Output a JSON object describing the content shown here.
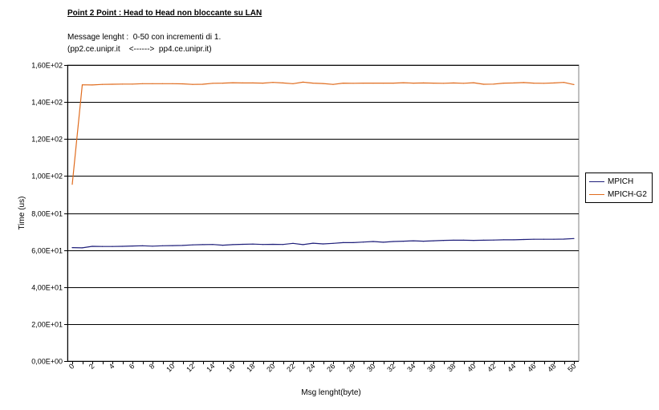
{
  "header": {
    "title": "Point 2 Point  :  Head to Head non bloccante su LAN",
    "subtitle_line1": "Message lenght :  0-50 con incrementi di 1.",
    "subtitle_line2": "(pp2.ce.unipr.it    <------>  pp4.ce.unipr.it)"
  },
  "chart_data": {
    "type": "line",
    "title": "Point 2 Point  :  Head to Head non bloccante su LAN",
    "xlabel": "Msg lenght(byte)",
    "ylabel": "Time (us)",
    "xlim": [
      0,
      50
    ],
    "ylim": [
      0,
      160
    ],
    "x": [
      0,
      1,
      2,
      3,
      4,
      5,
      6,
      7,
      8,
      9,
      10,
      11,
      12,
      13,
      14,
      15,
      16,
      17,
      18,
      19,
      20,
      21,
      22,
      23,
      24,
      25,
      26,
      27,
      28,
      29,
      30,
      31,
      32,
      33,
      34,
      35,
      36,
      37,
      38,
      39,
      40,
      41,
      42,
      43,
      44,
      45,
      46,
      47,
      48,
      49,
      50
    ],
    "x_tick_labels": [
      "0",
      "2",
      "4",
      "6",
      "8",
      "10",
      "12",
      "14",
      "16",
      "18",
      "20",
      "22",
      "24",
      "26",
      "28",
      "30",
      "32",
      "34",
      "36",
      "38",
      "40",
      "42",
      "44",
      "46",
      "48",
      "50"
    ],
    "y_tick_values": [
      0,
      20,
      40,
      60,
      80,
      100,
      120,
      140,
      160
    ],
    "y_tick_labels": [
      "0,00E+00",
      "2,00E+01",
      "4,00E+01",
      "6,00E+01",
      "8,00E+01",
      "1,00E+02",
      "1,20E+02",
      "1,40E+02",
      "1,60E+02"
    ],
    "grid": "horizontal",
    "legend": "right",
    "series": [
      {
        "name": "MPICH",
        "color": "#1f1f7a",
        "values": [
          61.3,
          61.2,
          62.0,
          61.9,
          61.9,
          62.0,
          62.2,
          62.3,
          62.1,
          62.3,
          62.4,
          62.5,
          62.8,
          62.9,
          63.0,
          62.6,
          62.9,
          63.1,
          63.2,
          63.0,
          63.1,
          63.0,
          63.6,
          62.9,
          63.7,
          63.3,
          63.6,
          64.0,
          64.0,
          64.3,
          64.6,
          64.2,
          64.6,
          64.8,
          65.0,
          64.8,
          65.0,
          65.2,
          65.3,
          65.3,
          65.2,
          65.3,
          65.4,
          65.5,
          65.5,
          65.7,
          65.8,
          65.8,
          65.8,
          65.9,
          66.2
        ]
      },
      {
        "name": "MPICH-G2",
        "color": "#e06c1e",
        "values": [
          95.5,
          149.3,
          149.2,
          149.5,
          149.6,
          149.7,
          149.7,
          149.9,
          149.9,
          149.9,
          149.9,
          149.8,
          149.5,
          149.6,
          150.1,
          150.2,
          150.4,
          150.3,
          150.3,
          150.2,
          150.6,
          150.3,
          149.9,
          150.7,
          150.2,
          150.0,
          149.5,
          150.2,
          150.1,
          150.2,
          150.2,
          150.2,
          150.2,
          150.4,
          150.2,
          150.3,
          150.2,
          150.1,
          150.3,
          150.1,
          150.4,
          149.6,
          149.7,
          150.2,
          150.3,
          150.5,
          150.2,
          150.1,
          150.3,
          150.6,
          149.4
        ]
      }
    ]
  }
}
